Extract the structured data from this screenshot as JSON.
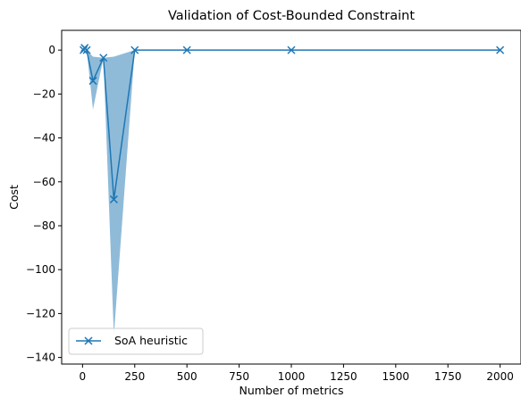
{
  "chart_data": {
    "type": "line",
    "title": "Validation of Cost-Bounded Constraint",
    "xlabel": "Number of metrics",
    "ylabel": "Cost",
    "xlim": [
      -100,
      2100
    ],
    "ylim": [
      -143,
      9
    ],
    "xticks": [
      0,
      250,
      500,
      750,
      1000,
      1250,
      1500,
      1750,
      2000
    ],
    "yticks": [
      0,
      -20,
      -40,
      -60,
      -80,
      -100,
      -120,
      -140
    ],
    "grid": false,
    "legend_position": "lower-left",
    "series": [
      {
        "name": "SoA heuristic",
        "color": "#1f77b4",
        "marker": "x",
        "x": [
          5,
          10,
          20,
          50,
          100,
          150,
          250,
          500,
          1000,
          2000
        ],
        "y": [
          0,
          1,
          0,
          -14,
          -3.5,
          -68,
          0,
          0,
          0,
          0
        ],
        "band_upper": [
          0,
          1,
          0,
          -3,
          -3.5,
          -3,
          0,
          0,
          0,
          0
        ],
        "band_lower": [
          0,
          1,
          0,
          -27,
          -3.5,
          -130,
          0,
          0,
          0,
          0
        ]
      }
    ]
  }
}
